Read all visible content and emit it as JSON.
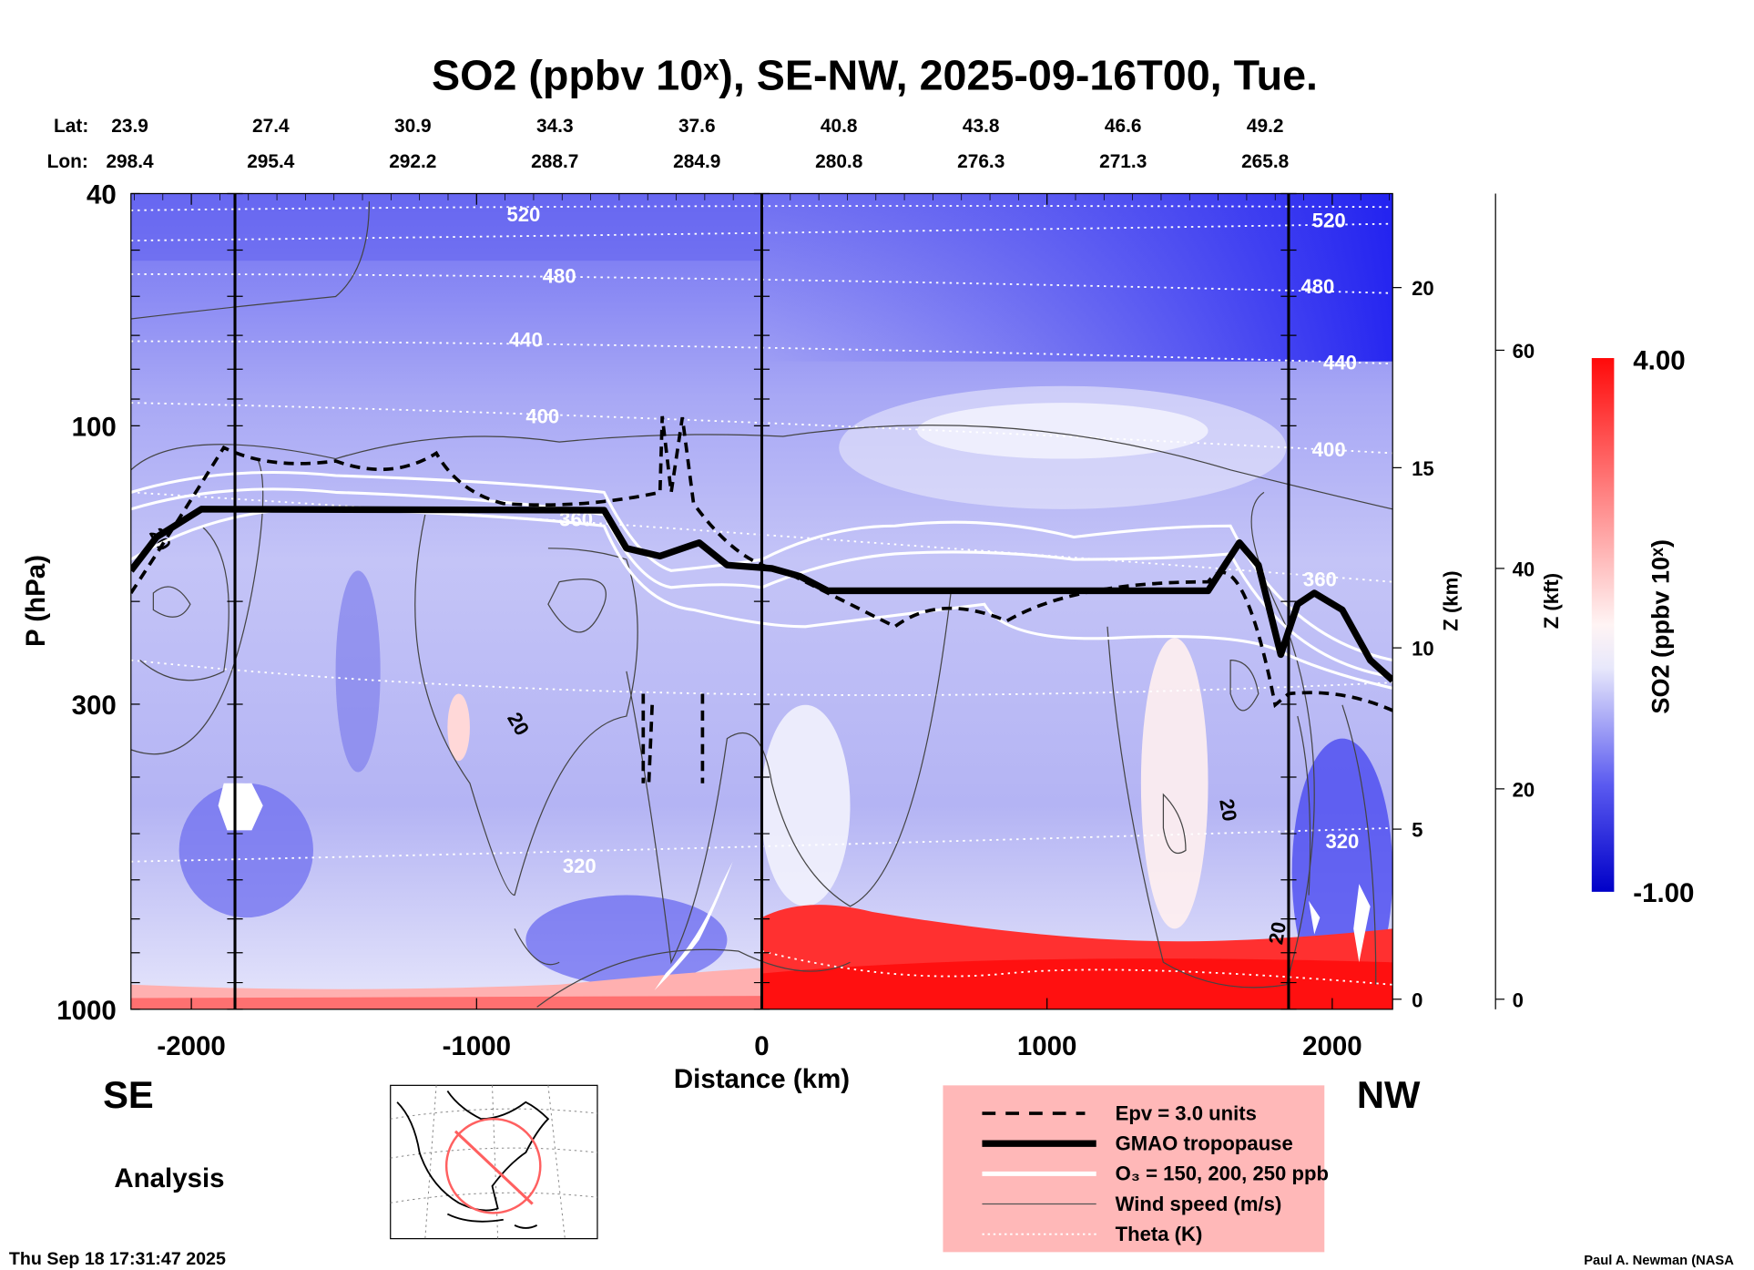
{
  "chart_data": {
    "type": "heatmap",
    "title": "SO2 (ppbv 10ˣ), SE-NW, 2025-09-16T00, Tue.",
    "xlabel": "Distance (km)",
    "ylabel": "P (hPa)",
    "xlim": [
      -2210,
      2215
    ],
    "ylim": [
      1000,
      40
    ],
    "x_ticks": [
      "-2000",
      "-1000",
      "0",
      "1000",
      "2000"
    ],
    "x_tick_values": [
      -2000,
      -1000,
      0,
      1000,
      2000
    ],
    "y_ticks": [
      "40",
      "100",
      "300",
      "1000"
    ],
    "y_tick_values": [
      40,
      100,
      300,
      1000
    ],
    "z_km_label": "Z (km)",
    "z_km_ticks": [
      "0",
      "5",
      "10",
      "15",
      "20"
    ],
    "z_kft_label": "Z (kft)",
    "z_kft_ticks": [
      "0",
      "20",
      "40",
      "60"
    ],
    "lat_label": "Lat:",
    "lon_label": "Lon:",
    "lat": [
      "23.9",
      "27.4",
      "30.9",
      "34.3",
      "37.6",
      "40.8",
      "43.8",
      "46.6",
      "49.2"
    ],
    "lon": [
      "298.4",
      "295.4",
      "292.2",
      "288.7",
      "284.9",
      "280.8",
      "276.3",
      "271.3",
      "265.8"
    ],
    "colorbar": {
      "label": "SO2 (ppbv 10ˣ)",
      "max_label": "4.00",
      "min_label": "-1.00",
      "range": [
        -1.0,
        4.0
      ],
      "colors": [
        "#0000d8",
        "#ffffff",
        "#ff0000"
      ]
    },
    "theta_labels": [
      "520",
      "480",
      "440",
      "400",
      "360",
      "320",
      "520",
      "480",
      "440",
      "400",
      "360",
      "320"
    ],
    "wind_labels": [
      "20",
      "20",
      "20",
      "20"
    ],
    "legend": [
      {
        "label": "Epv = 3.0 units",
        "style": "dashed"
      },
      {
        "label": "GMAO tropopause",
        "style": "thick"
      },
      {
        "label": "O₃ = 150, 200, 250 ppb",
        "style": "white"
      },
      {
        "label": "Wind speed (m/s)",
        "style": "thin"
      },
      {
        "label": "Theta (K)",
        "style": "dotted"
      }
    ],
    "legend_placement": "bottom-center"
  },
  "labels": {
    "left_direction": "SE",
    "right_direction": "NW",
    "analysis": "Analysis",
    "timestamp": "Thu Sep 18 17:31:47 2025",
    "credit": "Paul A. Newman (NASA"
  },
  "colors": {
    "legend_bg": "#ffb8b8",
    "blue": "#3a3af0",
    "red": "#ff1a1a"
  }
}
